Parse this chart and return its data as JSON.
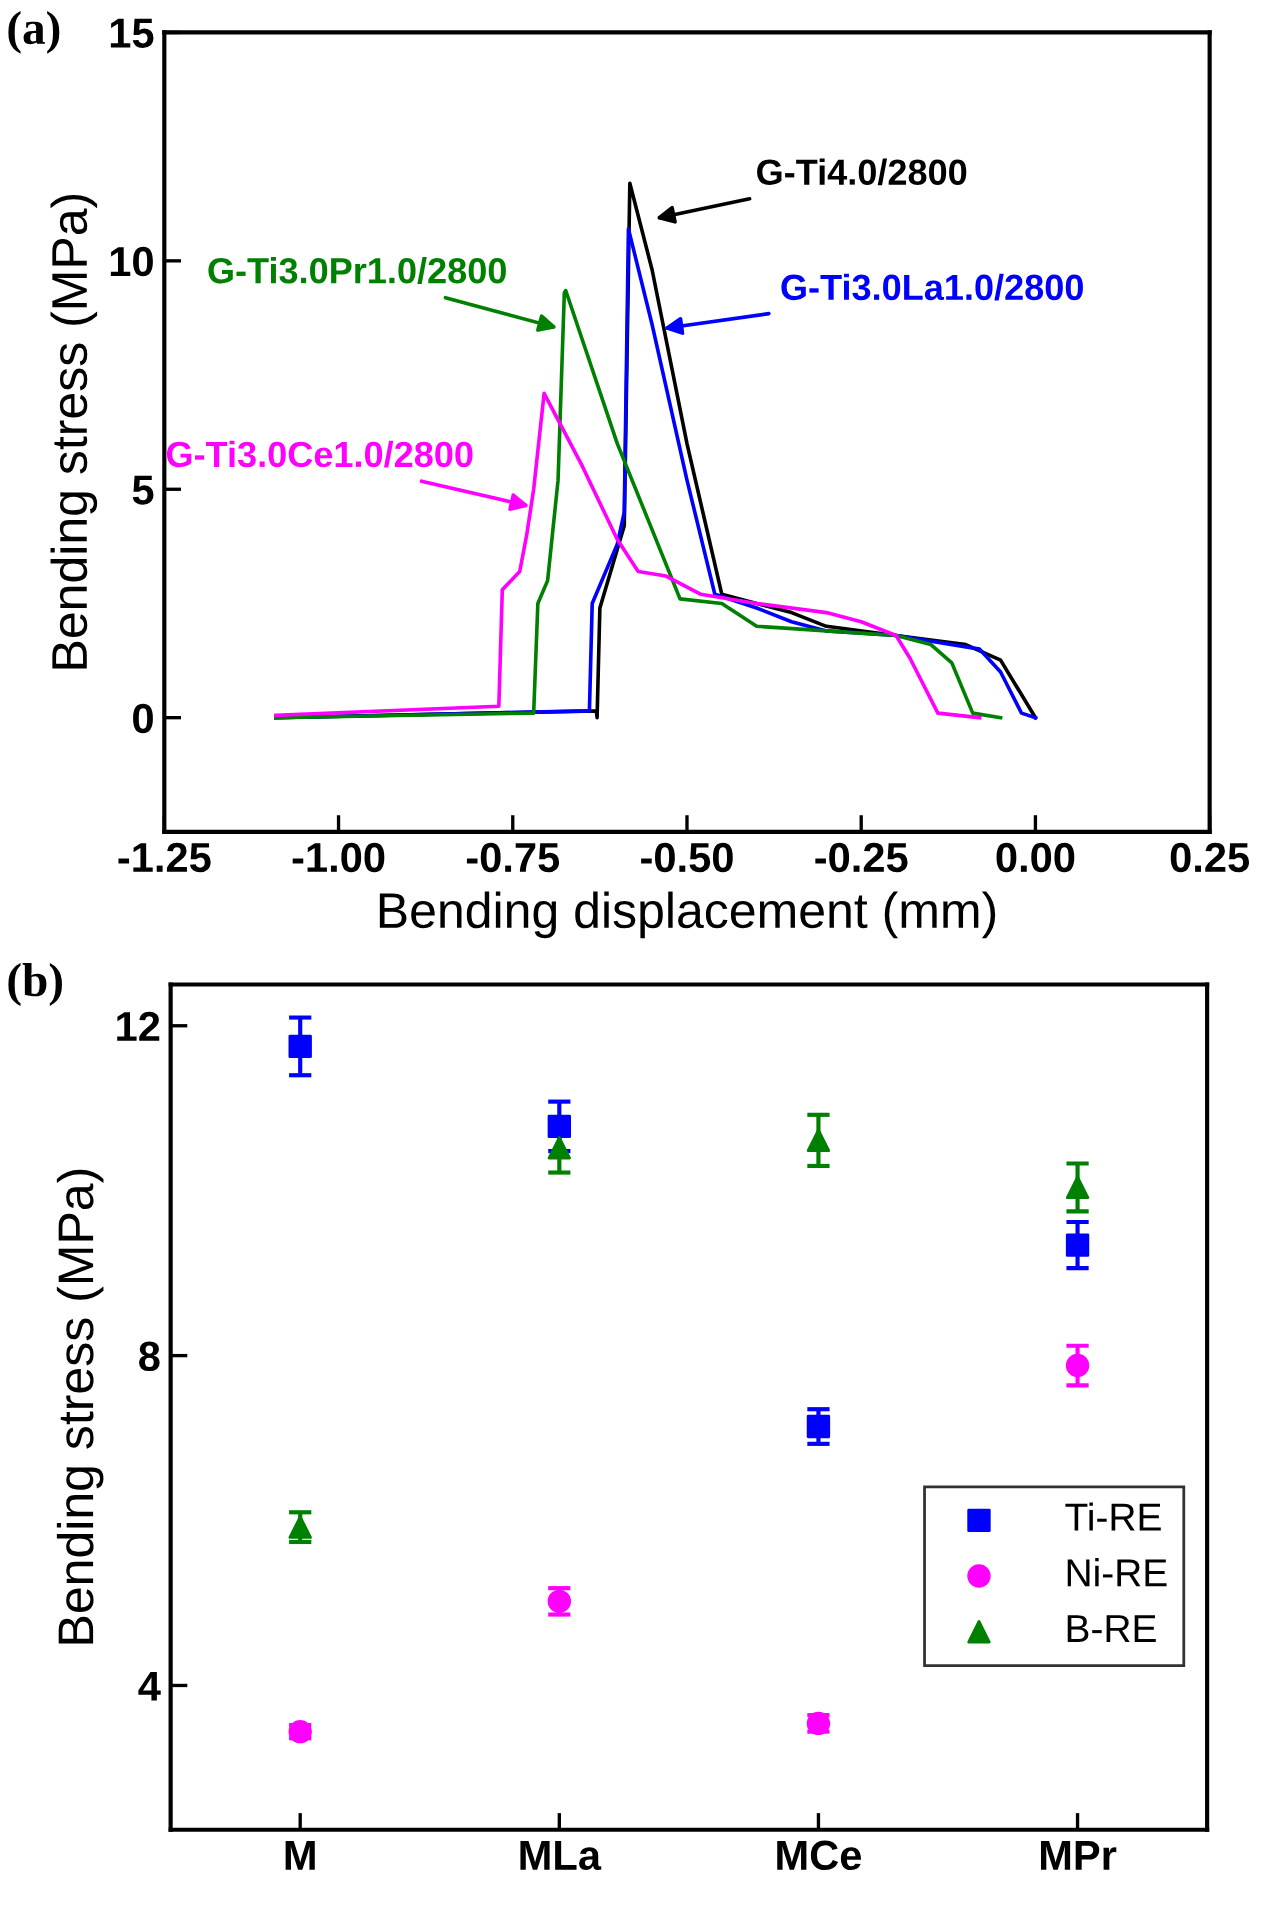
{
  "chart_data": [
    {
      "type": "line",
      "title": "(a)",
      "xlabel": "Bending displacement (mm)",
      "ylabel": "Bending stress (MPa)",
      "xlim": [
        -1.25,
        0.25
      ],
      "xticks": [
        {
          "value": -1.25,
          "label": "-1.25"
        },
        {
          "value": -1.0,
          "label": "-1.00"
        },
        {
          "value": -0.75,
          "label": "-0.75"
        },
        {
          "value": -0.5,
          "label": "-0.50"
        },
        {
          "value": -0.25,
          "label": "-0.25"
        },
        {
          "value": 0.0,
          "label": "0.00"
        },
        {
          "value": 0.25,
          "label": "0.25"
        }
      ],
      "ylim": [
        -2.5,
        15
      ],
      "yticks": [
        0,
        5,
        10,
        15
      ],
      "grid": false,
      "marker": "none",
      "line_style": "solid",
      "series": [
        {
          "color": "#000000",
          "x": [
            -1.09,
            -0.63,
            -0.629,
            -0.625,
            -0.59,
            -0.582,
            -0.55,
            -0.5,
            -0.45,
            -0.4,
            -0.35,
            -0.3,
            -0.2,
            -0.1,
            -0.05,
            0.0
          ],
          "values": [
            0,
            0.15,
            0,
            2.4,
            4.2,
            11.7,
            9.8,
            6.0,
            2.7,
            2.5,
            2.3,
            2.0,
            1.8,
            1.6,
            1.26,
            0
          ]
        },
        {
          "color": "#0000ff",
          "x": [
            -1.09,
            -0.64,
            -0.636,
            -0.6,
            -0.59,
            -0.584,
            -0.55,
            -0.5,
            -0.46,
            -0.4,
            -0.35,
            -0.3,
            -0.2,
            -0.08,
            -0.05,
            -0.02,
            0.0
          ],
          "values": [
            0,
            0.15,
            2.5,
            3.8,
            4.5,
            10.7,
            8.6,
            5.2,
            2.7,
            2.4,
            2.1,
            1.9,
            1.8,
            1.5,
            1.0,
            0.1,
            0
          ]
        },
        {
          "color": "#008000",
          "x": [
            -1.09,
            -0.72,
            -0.714,
            -0.7,
            -0.685,
            -0.676,
            -0.674,
            -0.6,
            -0.51,
            -0.45,
            -0.4,
            -0.3,
            -0.2,
            -0.15,
            -0.12,
            -0.09,
            -0.05
          ],
          "values": [
            0,
            0.1,
            2.5,
            3.0,
            5.2,
            9.3,
            9.35,
            6.0,
            2.6,
            2.5,
            2.0,
            1.9,
            1.8,
            1.6,
            1.2,
            0.1,
            0
          ]
        },
        {
          "color": "#ff00ff",
          "x": [
            -1.09,
            -0.77,
            -0.765,
            -0.74,
            -0.73,
            -0.72,
            -0.705,
            -0.65,
            -0.6,
            -0.57,
            -0.53,
            -0.48,
            -0.4,
            -0.3,
            -0.25,
            -0.2,
            -0.18,
            -0.14,
            -0.08
          ],
          "values": [
            0.05,
            0.25,
            2.8,
            3.2,
            4.0,
            5.0,
            7.1,
            5.5,
            3.9,
            3.2,
            3.1,
            2.7,
            2.5,
            2.3,
            2.1,
            1.8,
            1.3,
            0.1,
            0
          ]
        }
      ],
      "annotations": [
        {
          "text": "G-Ti4.0/2800",
          "x": -0.553,
          "y": 10.9
        },
        {
          "text": "G-Ti3.0La1.0/2800",
          "x": -0.542,
          "y": 8.5
        },
        {
          "text": "G-Ti3.0Pr1.0/2800",
          "x": -0.678,
          "y": 8.5
        },
        {
          "text": "G-Ti3.0Ce1.0/2800",
          "x": -0.718,
          "y": 4.6
        }
      ]
    },
    {
      "type": "scatter",
      "title": "(b)",
      "ylabel": "Bending stress (MPa)",
      "categories": [
        "M",
        "MLa",
        "MCe",
        "MPr"
      ],
      "ylim": [
        2.25,
        12.5
      ],
      "yticks": [
        4,
        8,
        12
      ],
      "grid": false,
      "legend": "right",
      "series": [
        {
          "name": "Ti-RE",
          "color": "#0000ff",
          "marker": "square",
          "values": [
            11.75,
            10.78,
            7.14,
            9.34
          ],
          "errors": [
            0.35,
            0.3,
            0.21,
            0.28
          ]
        },
        {
          "name": "Ni-RE",
          "color": "#ff00ff",
          "marker": "circle",
          "values": [
            3.44,
            5.02,
            3.54,
            7.88
          ],
          "errors": [
            0.08,
            0.16,
            0.1,
            0.24
          ]
        },
        {
          "name": "B-RE",
          "color": "#008000",
          "marker": "triangle",
          "values": [
            5.92,
            10.52,
            10.61,
            10.04
          ],
          "errors": [
            0.18,
            0.3,
            0.31,
            0.29
          ]
        }
      ]
    }
  ]
}
